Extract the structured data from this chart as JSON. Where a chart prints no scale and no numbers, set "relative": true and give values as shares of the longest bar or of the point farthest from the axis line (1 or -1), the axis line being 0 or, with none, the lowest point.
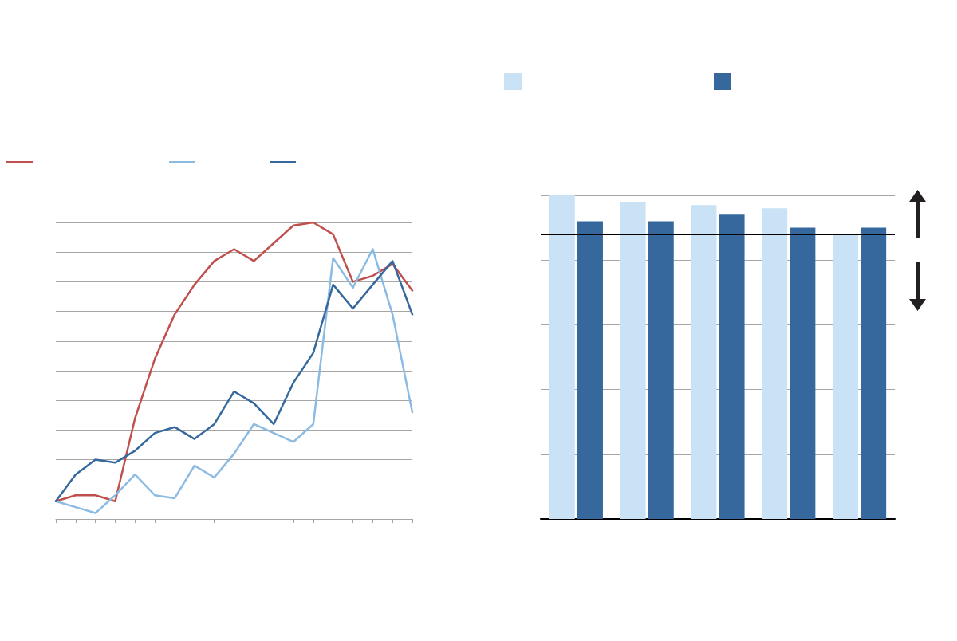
{
  "chart_data": [
    {
      "type": "line",
      "relative": true,
      "grid": "y",
      "marker": "none",
      "line_style": "solid",
      "categories": [
        null,
        null,
        null,
        null,
        null,
        null,
        null,
        null,
        null,
        null,
        null,
        null,
        null,
        null,
        null,
        null,
        null,
        null,
        null
      ],
      "series": [
        {
          "color": "#c0504d",
          "values": [
            0.06,
            0.08,
            0.08,
            0.06,
            0.34,
            0.54,
            0.69,
            0.79,
            0.87,
            0.91,
            0.87,
            0.93,
            0.99,
            1,
            0.96,
            0.8,
            0.82,
            0.86,
            0.77
          ]
        },
        {
          "color": "#8bbbe3",
          "values": [
            0.06,
            0.04,
            0.02,
            0.08,
            0.15,
            0.08,
            0.07,
            0.18,
            0.14,
            0.22,
            0.32,
            0.29,
            0.26,
            0.32,
            0.88,
            0.78,
            0.91,
            0.69,
            0.36
          ]
        },
        {
          "color": "#36689e",
          "values": [
            0.06,
            0.15,
            0.2,
            0.19,
            0.23,
            0.29,
            0.31,
            0.27,
            0.32,
            0.43,
            0.39,
            0.32,
            0.46,
            0.56,
            0.79,
            0.71,
            0.79,
            0.87,
            0.69
          ]
        }
      ]
    },
    {
      "type": "bar",
      "relative": true,
      "grid": "y",
      "categories": [
        null,
        null,
        null,
        null,
        null
      ],
      "series": [
        {
          "color": "#c9e2f5",
          "values": [
            1,
            0.98,
            0.97,
            0.96,
            0.88
          ]
        },
        {
          "color": "#36689e",
          "values": [
            0.92,
            0.92,
            0.94,
            0.9,
            0.9
          ]
        }
      ],
      "ref_lines": [
        {
          "axis": "y",
          "value": 0.88,
          "color": "#000000",
          "line_style": "solid"
        }
      ]
    }
  ]
}
